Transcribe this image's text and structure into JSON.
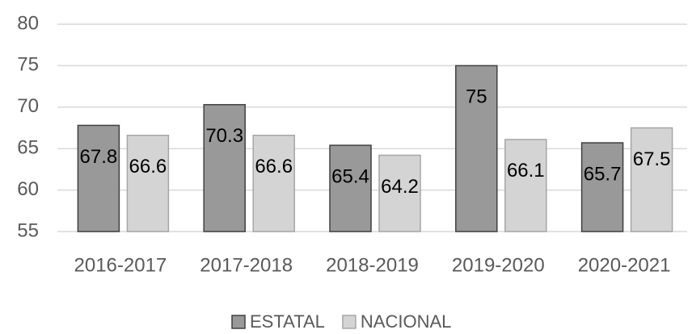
{
  "chart_data": {
    "type": "bar",
    "categories": [
      "2016-2017",
      "2017-2018",
      "2018-2019",
      "2019-2020",
      "2020-2021"
    ],
    "series": [
      {
        "name": "ESTATAL",
        "color": "#999999",
        "values": [
          67.8,
          70.3,
          65.4,
          75,
          65.7
        ]
      },
      {
        "name": "NACIONAL",
        "color": "#d4d4d4",
        "values": [
          66.6,
          66.6,
          64.2,
          66.1,
          67.5
        ]
      }
    ],
    "ylim": [
      55,
      80
    ],
    "yticks": [
      55,
      60,
      65,
      70,
      75,
      80
    ],
    "grid": true,
    "legend": "bottom"
  }
}
